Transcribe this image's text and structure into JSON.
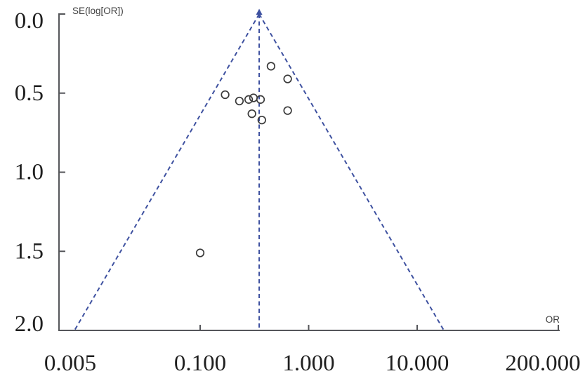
{
  "chart_data": {
    "type": "scatter",
    "subtype": "funnel-plot",
    "title": "",
    "grid": false,
    "legend": null,
    "x_axis": {
      "label": "OR",
      "scale": "log",
      "range": [
        0.005,
        200
      ],
      "ticks": [
        0.005,
        0.1,
        1,
        10,
        200
      ],
      "tick_labels": [
        "0.005",
        "0.100",
        "1.000",
        "10.000",
        "200.000"
      ]
    },
    "y_axis": {
      "label": "SE(log[OR])",
      "scale": "linear",
      "range": [
        0,
        2
      ],
      "inverted": true,
      "ticks": [
        0,
        0.5,
        1,
        1.5,
        2
      ],
      "tick_labels": [
        "0.0",
        "0.5",
        "1.0",
        "1.5",
        "2.0"
      ]
    },
    "pooled_or": 0.35,
    "funnel_z": 1.96,
    "funnel_style": "dashed",
    "points": [
      {
        "or": 0.45,
        "se": 0.33
      },
      {
        "or": 0.64,
        "se": 0.41
      },
      {
        "or": 0.17,
        "se": 0.51
      },
      {
        "or": 0.23,
        "se": 0.55
      },
      {
        "or": 0.28,
        "se": 0.54
      },
      {
        "or": 0.31,
        "se": 0.53
      },
      {
        "or": 0.36,
        "se": 0.54
      },
      {
        "or": 0.3,
        "se": 0.63
      },
      {
        "or": 0.37,
        "se": 0.67
      },
      {
        "or": 0.64,
        "se": 0.61
      },
      {
        "or": 0.1,
        "se": 1.51
      }
    ],
    "colors": {
      "funnel_line": "#3E51A0",
      "marker_stroke": "#3A3A3A",
      "axis": "#55565A",
      "tick_text": "#1F1F1F",
      "axis_label_text": "#404040",
      "background": "#FFFFFF"
    }
  }
}
